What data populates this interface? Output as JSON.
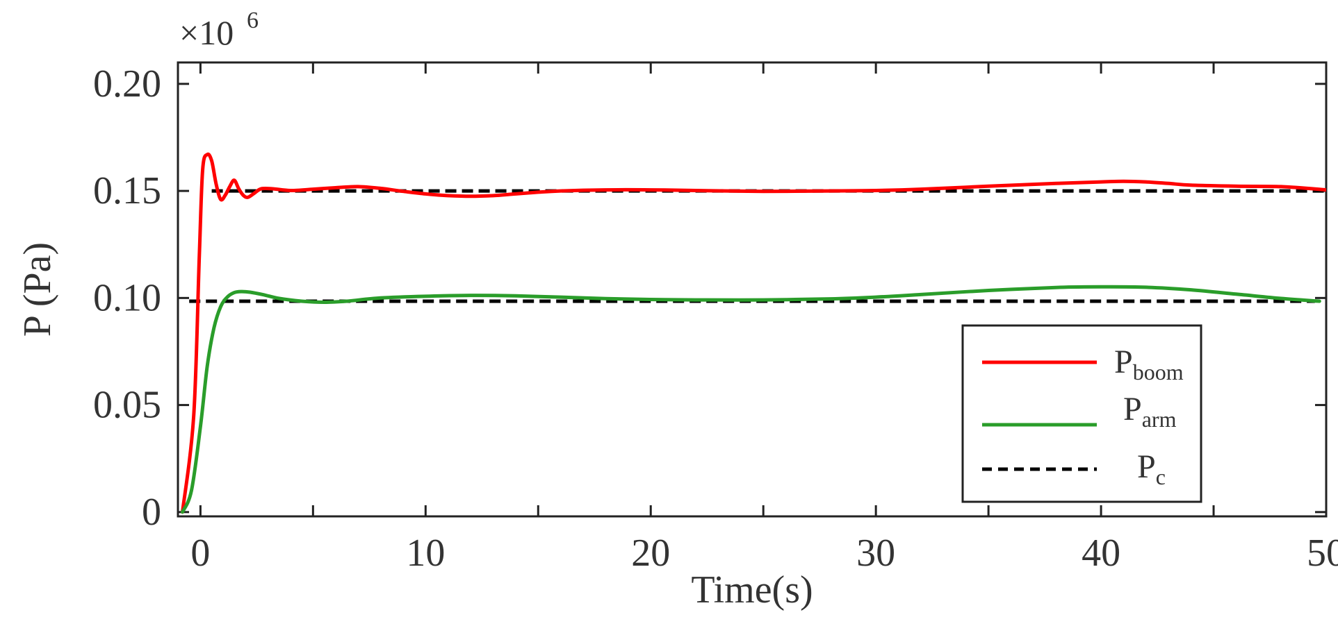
{
  "chart_data": {
    "type": "line",
    "xlabel": "Time(s)",
    "ylabel": "P (Pa)",
    "exponent": {
      "base": "×10",
      "power": "6"
    },
    "xlim": [
      -1,
      50
    ],
    "ylim": [
      -0.002,
      0.21
    ],
    "x_ticks": [
      0,
      10,
      20,
      30,
      40,
      50
    ],
    "x_tick_labels": [
      "0",
      "10",
      "20",
      "30",
      "40",
      "50"
    ],
    "x_minor_ticks": [
      5,
      15,
      25,
      35,
      45
    ],
    "y_ticks": [
      0,
      0.05,
      0.1,
      0.15,
      0.2
    ],
    "y_tick_labels": [
      "0",
      "0.05",
      "0.10",
      "0.15",
      "0.20"
    ],
    "grid": false,
    "legend_position": "bottom-right",
    "series": [
      {
        "key": "boom",
        "legend_main": "P",
        "legend_sub": "boom",
        "color": "#ff0000",
        "style": "solid",
        "x": [
          -0.8,
          -0.3,
          -0.05,
          0.1,
          0.3,
          0.5,
          0.7,
          0.9,
          1.1,
          1.3,
          1.5,
          1.7,
          1.9,
          2.1,
          2.4,
          2.7,
          3.2,
          4,
          5,
          6,
          7,
          8,
          9,
          10,
          11,
          12,
          13,
          14,
          15,
          16,
          18,
          20,
          22,
          25,
          28,
          30,
          32,
          35,
          38,
          40,
          41,
          42,
          43,
          44,
          46,
          48,
          50
        ],
        "y": [
          0.0,
          0.045,
          0.12,
          0.16,
          0.167,
          0.164,
          0.153,
          0.146,
          0.148,
          0.152,
          0.155,
          0.151,
          0.148,
          0.147,
          0.149,
          0.151,
          0.151,
          0.1502,
          0.1508,
          0.1515,
          0.152,
          0.1512,
          0.1498,
          0.1486,
          0.1478,
          0.1475,
          0.1478,
          0.1486,
          0.1494,
          0.15,
          0.1505,
          0.1505,
          0.1502,
          0.1498,
          0.15,
          0.1502,
          0.1508,
          0.1522,
          0.1535,
          0.1542,
          0.1545,
          0.1542,
          0.1535,
          0.1527,
          0.1522,
          0.152,
          0.1505
        ]
      },
      {
        "key": "arm",
        "legend_main": "P",
        "legend_sub": "arm",
        "color": "#2a9d2a",
        "style": "solid",
        "x": [
          -0.8,
          -0.4,
          0,
          0.3,
          0.6,
          0.9,
          1.2,
          1.5,
          1.8,
          2.2,
          2.8,
          3.5,
          4.5,
          5.5,
          6.5,
          8,
          10,
          12,
          14,
          16,
          18,
          20,
          22,
          25,
          28,
          30,
          32,
          35,
          38,
          40,
          42,
          44,
          46,
          48,
          49.7
        ],
        "y": [
          0.0,
          0.01,
          0.04,
          0.068,
          0.086,
          0.096,
          0.1005,
          0.1025,
          0.103,
          0.1027,
          0.1015,
          0.0998,
          0.0985,
          0.098,
          0.0985,
          0.1,
          0.1008,
          0.1012,
          0.101,
          0.1004,
          0.0997,
          0.0993,
          0.0991,
          0.0991,
          0.0996,
          0.1004,
          0.1016,
          0.1035,
          0.1049,
          0.1052,
          0.105,
          0.1038,
          0.1018,
          0.0998,
          0.0985
        ]
      },
      {
        "key": "c",
        "legend_main": "P",
        "legend_sub": "c",
        "color": "#000000",
        "style": "dashed",
        "segments": [
          {
            "x": [
              0.5,
              50
            ],
            "y": [
              0.15,
              0.15
            ]
          },
          {
            "x": [
              -0.5,
              49.5
            ],
            "y": [
              0.0985,
              0.0985
            ]
          }
        ]
      }
    ]
  }
}
